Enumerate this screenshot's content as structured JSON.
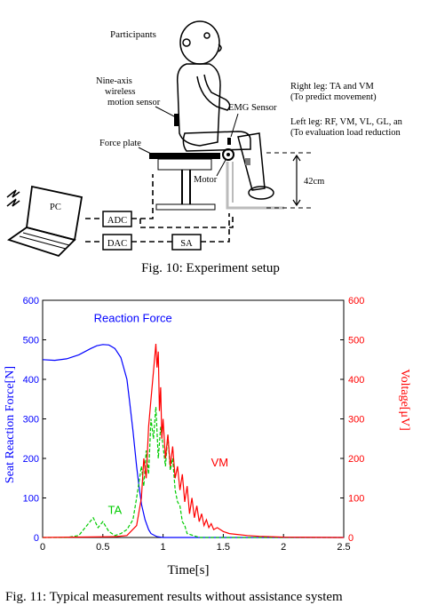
{
  "figure10": {
    "caption": "Fig. 10: Experiment setup",
    "labels": {
      "participants": "Participants",
      "sensor_line1": "Nine-axis",
      "sensor_line2": "wireless",
      "sensor_line3": "motion sensor",
      "emg": "EMG Sensor",
      "force_plate": "Force plate",
      "motor": "Motor",
      "height": "42cm",
      "pc": "PC",
      "adc": "ADC",
      "dac": "DAC",
      "sa": "SA",
      "right_leg": "Right leg: TA and VM",
      "right_leg_note": "(To predict movement)",
      "left_leg": "Left leg: RF, VM, VL, GL, an",
      "left_leg_note": "(To evaluation load reduction"
    }
  },
  "figure11": {
    "caption_partial": "Fig. 11: Typical measurement results without assistance system"
  },
  "chart_data": {
    "type": "line",
    "xlabel": "Time[s]",
    "ylabel_left": "Seat Reaction Force[N]",
    "ylabel_right": "Voltage[μV]",
    "xlim": [
      0,
      2.5
    ],
    "ylim_left": [
      0,
      600
    ],
    "ylim_right": [
      0,
      600
    ],
    "x_ticks": [
      "0",
      "0.5",
      "1",
      "1.5",
      "2",
      "2.5"
    ],
    "y_ticks_left": [
      "0",
      "100",
      "200",
      "300",
      "400",
      "500",
      "600"
    ],
    "y_ticks_right": [
      "0",
      "100",
      "200",
      "300",
      "400",
      "500",
      "600"
    ],
    "grid": false,
    "colors": {
      "force": "#0000ff",
      "ta": "#00cc00",
      "vm": "#ff0000",
      "axis_left": "#0000ff",
      "axis_right": "#ff0000"
    },
    "series": [
      {
        "name": "Reaction Force",
        "axis": "left",
        "x": [
          0,
          0.1,
          0.2,
          0.3,
          0.4,
          0.45,
          0.5,
          0.55,
          0.6,
          0.65,
          0.7,
          0.72,
          0.75,
          0.78,
          0.8,
          0.82,
          0.85,
          0.88,
          0.9,
          0.95,
          1.0,
          1.1,
          1.5,
          2.0,
          2.5
        ],
        "y": [
          450,
          448,
          452,
          462,
          478,
          485,
          488,
          487,
          478,
          455,
          400,
          350,
          270,
          180,
          130,
          85,
          45,
          20,
          10,
          2,
          0,
          0,
          0,
          0,
          0
        ]
      },
      {
        "name": "TA",
        "axis": "right",
        "x": [
          0,
          0.2,
          0.3,
          0.38,
          0.42,
          0.46,
          0.5,
          0.55,
          0.6,
          0.65,
          0.7,
          0.75,
          0.78,
          0.8,
          0.82,
          0.84,
          0.86,
          0.88,
          0.9,
          0.92,
          0.94,
          0.96,
          0.98,
          1.0,
          1.02,
          1.04,
          1.06,
          1.08,
          1.1,
          1.12,
          1.14,
          1.16,
          1.18,
          1.2,
          1.25,
          1.3,
          1.5,
          2.5
        ],
        "y": [
          0,
          0,
          5,
          35,
          50,
          25,
          40,
          15,
          5,
          10,
          20,
          45,
          100,
          140,
          180,
          130,
          220,
          160,
          300,
          250,
          330,
          200,
          280,
          230,
          180,
          260,
          170,
          200,
          120,
          90,
          80,
          40,
          30,
          10,
          5,
          0,
          0,
          0
        ]
      },
      {
        "name": "VM",
        "axis": "right",
        "x": [
          0,
          0.6,
          0.7,
          0.78,
          0.82,
          0.84,
          0.86,
          0.88,
          0.9,
          0.92,
          0.94,
          0.95,
          0.96,
          0.97,
          0.98,
          0.99,
          1.0,
          1.02,
          1.04,
          1.06,
          1.08,
          1.1,
          1.12,
          1.14,
          1.16,
          1.18,
          1.2,
          1.22,
          1.24,
          1.26,
          1.28,
          1.3,
          1.32,
          1.34,
          1.36,
          1.38,
          1.4,
          1.42,
          1.45,
          1.5,
          1.55,
          1.6,
          1.7,
          1.8,
          2.0,
          2.5
        ],
        "y": [
          0,
          2,
          5,
          30,
          100,
          200,
          150,
          280,
          350,
          420,
          490,
          430,
          470,
          320,
          380,
          250,
          300,
          200,
          260,
          180,
          230,
          150,
          180,
          120,
          160,
          90,
          130,
          60,
          100,
          50,
          80,
          40,
          60,
          30,
          45,
          25,
          35,
          20,
          25,
          15,
          10,
          8,
          5,
          3,
          1,
          0
        ]
      }
    ],
    "annotations": [
      {
        "text": "Reaction Force",
        "series": "Reaction Force",
        "x": 0.75,
        "y": 545
      },
      {
        "text": "TA",
        "series": "TA",
        "x": 0.6,
        "y": 60
      },
      {
        "text": "VM",
        "series": "VM",
        "x": 1.47,
        "y": 180
      }
    ]
  }
}
